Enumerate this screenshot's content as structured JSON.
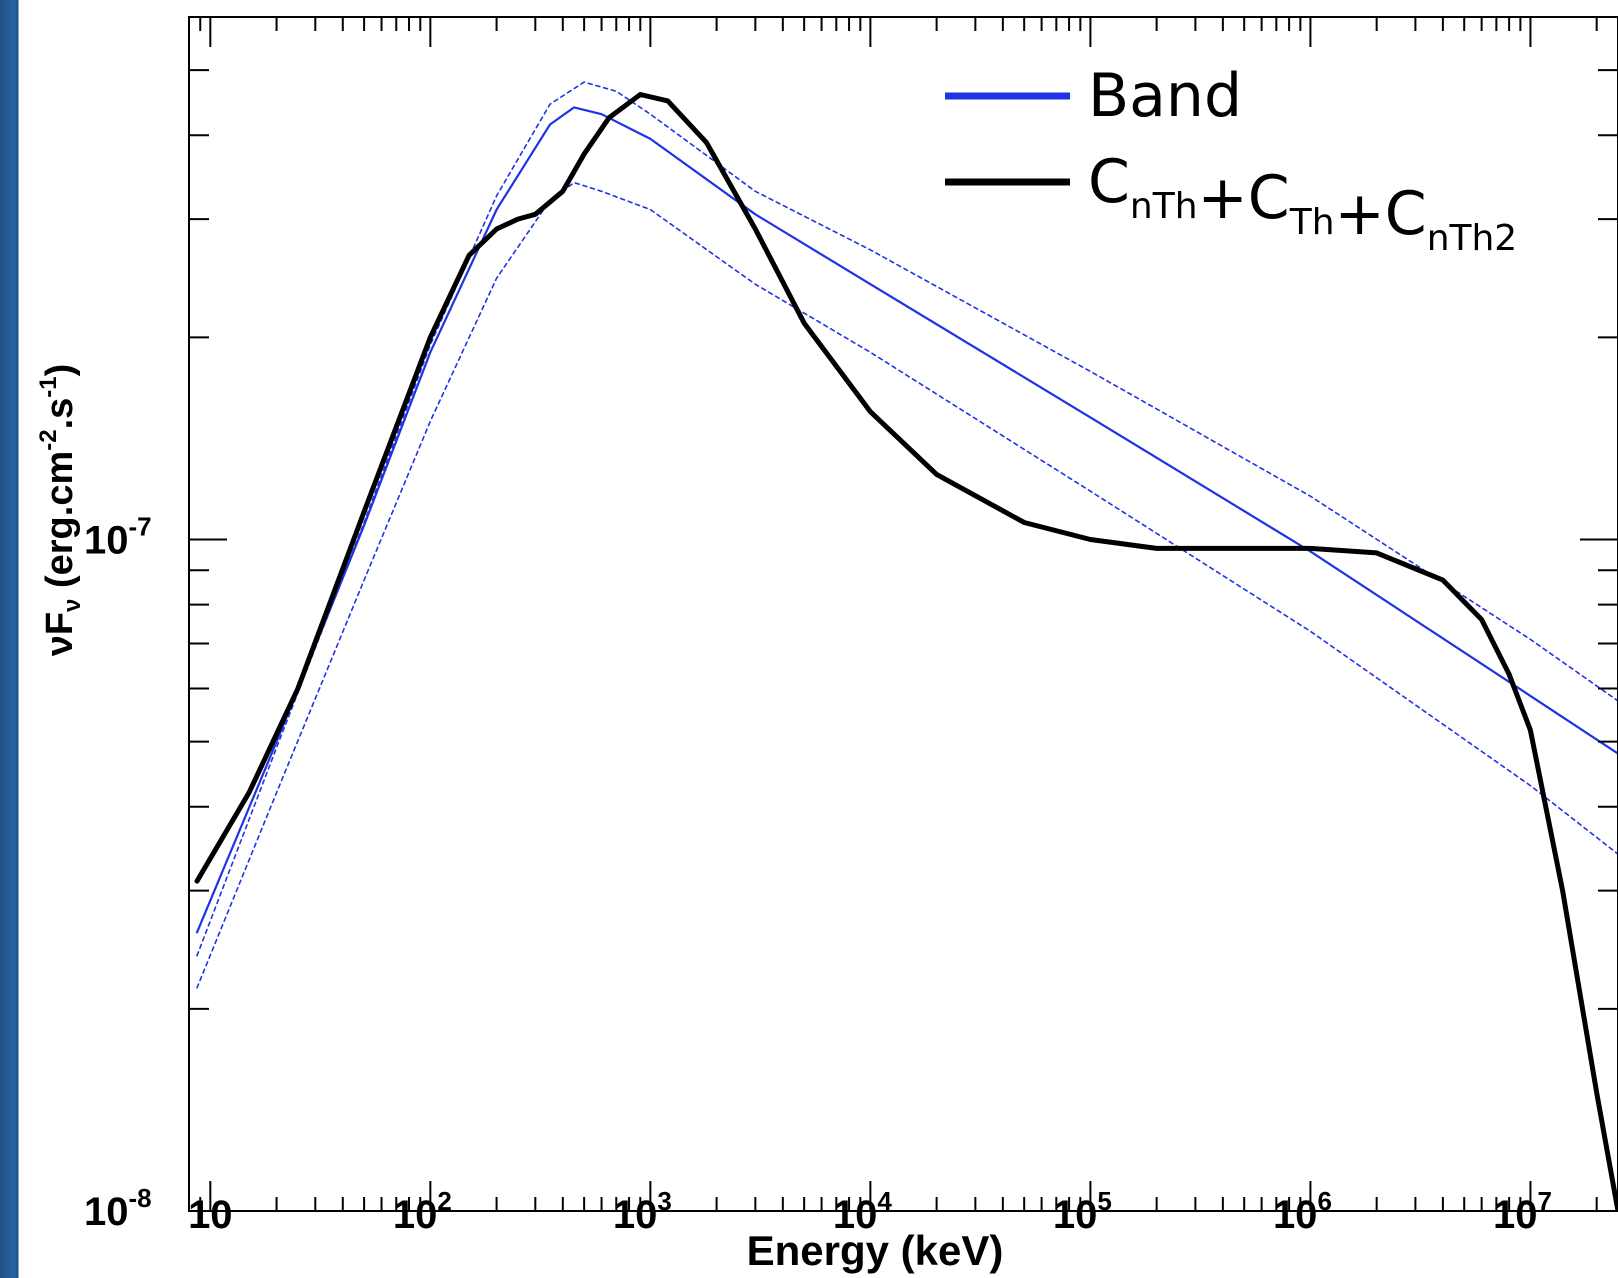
{
  "chart_data": {
    "type": "line",
    "xlabel": "Energy (keV)",
    "ylabel": {
      "base": "νF",
      "sub": "ν",
      "units_prefix": " (erg.cm",
      "exp1": "-2",
      "mid": ".s",
      "exp2": "-1",
      "suffix": ")"
    },
    "x_scale": "log",
    "y_scale": "log",
    "xlim": [
      8,
      25000000
    ],
    "ylim": [
      1e-08,
      6e-07
    ],
    "x_ticks": [
      {
        "value": 10,
        "base": "10",
        "exp": ""
      },
      {
        "value": 100,
        "base": "10",
        "exp": "2"
      },
      {
        "value": 1000,
        "base": "10",
        "exp": "3"
      },
      {
        "value": 10000,
        "base": "10",
        "exp": "4"
      },
      {
        "value": 100000,
        "base": "10",
        "exp": "5"
      },
      {
        "value": 1000000,
        "base": "10",
        "exp": "6"
      },
      {
        "value": 10000000,
        "base": "10",
        "exp": "7"
      }
    ],
    "y_ticks": [
      {
        "value": 1e-08,
        "base": "10",
        "exp": "-8"
      },
      {
        "value": 1e-07,
        "base": "10",
        "exp": "-7"
      }
    ],
    "grid": false,
    "legend_position": "top-right",
    "legend": [
      {
        "label": "Band",
        "sub_parts": [],
        "color": "#1f33e6"
      },
      {
        "label": "",
        "sub_parts": [
          [
            "C",
            "nTh"
          ],
          [
            "+C",
            "Th"
          ],
          [
            "+C",
            "nTh2"
          ]
        ],
        "color": "#000000"
      }
    ],
    "series": [
      {
        "name": "Band",
        "color": "#1f33e6",
        "style": "solid",
        "x": [
          8.7,
          20,
          50,
          100,
          200,
          350,
          450,
          600,
          1000,
          3000,
          10000,
          100000,
          1000000,
          10000000,
          25000000
        ],
        "y": [
          2.6e-08,
          5e-08,
          1.05e-07,
          1.9e-07,
          3.1e-07,
          4.15e-07,
          4.4e-07,
          4.3e-07,
          3.95e-07,
          3.05e-07,
          2.4e-07,
          1.52e-07,
          9.6e-08,
          5.85e-08,
          4.8e-08
        ]
      },
      {
        "name": "Band (upper bound)",
        "color": "#1f33e6",
        "style": "dashed",
        "x": [
          8.7,
          20,
          50,
          100,
          200,
          350,
          500,
          700,
          1000,
          3000,
          10000,
          100000,
          1000000,
          10000000,
          25000000
        ],
        "y": [
          2.4e-08,
          4.9e-08,
          1.06e-07,
          1.95e-07,
          3.25e-07,
          4.45e-07,
          4.8e-07,
          4.65e-07,
          4.3e-07,
          3.3e-07,
          2.7e-07,
          1.78e-07,
          1.16e-07,
          7.1e-08,
          5.75e-08
        ]
      },
      {
        "name": "Band (lower bound)",
        "color": "#1f33e6",
        "style": "dashed",
        "x": [
          8.7,
          20,
          50,
          100,
          200,
          350,
          450,
          600,
          1000,
          3000,
          10000,
          100000,
          1000000,
          10000000,
          25000000
        ],
        "y": [
          2.15e-08,
          4.2e-08,
          8.7e-08,
          1.5e-07,
          2.45e-07,
          3.2e-07,
          3.4e-07,
          3.3e-07,
          3.1e-07,
          2.4e-07,
          1.9e-07,
          1.18e-07,
          7.3e-08,
          4.3e-08,
          3.4e-08
        ]
      },
      {
        "name": "CnTh+CTh+CnTh2",
        "color": "#000000",
        "style": "solid",
        "x": [
          8.7,
          15,
          25,
          50,
          100,
          150,
          200,
          250,
          300,
          400,
          500,
          650,
          900,
          1200,
          1800,
          3000,
          5000,
          10000,
          20000,
          50000,
          100000,
          200000,
          500000,
          1000000,
          2000000,
          4000000,
          6000000,
          8000000,
          10000000,
          14000000,
          20000000,
          25000000
        ],
        "y": [
          3.1e-08,
          4.2e-08,
          6e-08,
          1.1e-07,
          2e-07,
          2.65e-07,
          2.9e-07,
          3e-07,
          3.05e-07,
          3.3e-07,
          3.75e-07,
          4.25e-07,
          4.6e-07,
          4.5e-07,
          3.9e-07,
          2.9e-07,
          2.1e-07,
          1.55e-07,
          1.25e-07,
          1.06e-07,
          1e-07,
          9.7e-08,
          9.7e-08,
          9.7e-08,
          9.55e-08,
          8.7e-08,
          7.6e-08,
          6.3e-08,
          5.2e-08,
          3e-08,
          1.5e-08,
          1e-08
        ]
      }
    ]
  }
}
